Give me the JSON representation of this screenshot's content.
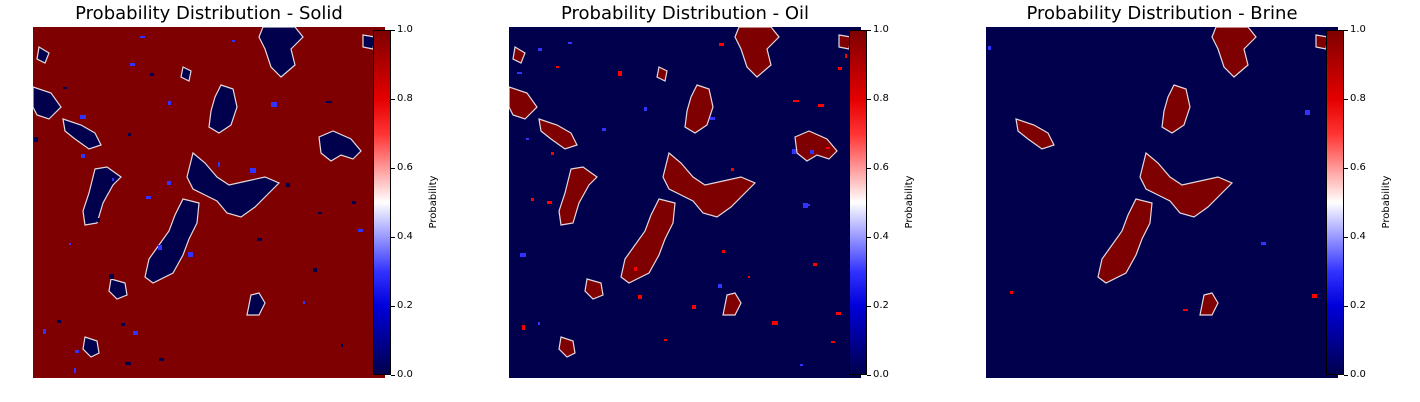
{
  "chart_data": [
    {
      "type": "heatmap",
      "title": "Probability Distribution - Solid",
      "colorbar": {
        "label": "Probability",
        "range": [
          0.0,
          1.0
        ],
        "ticks": [
          "0.0",
          "0.2",
          "0.4",
          "0.6",
          "0.8",
          "1.0"
        ],
        "colormap": "seismic"
      },
      "dominant_value": 1.0,
      "minority_value": 0.0,
      "axes_visible": false
    },
    {
      "type": "heatmap",
      "title": "Probability Distribution - Oil",
      "colorbar": {
        "label": "Probability",
        "range": [
          0.0,
          1.0
        ],
        "ticks": [
          "0.0",
          "0.2",
          "0.4",
          "0.6",
          "0.8",
          "1.0"
        ],
        "colormap": "seismic"
      },
      "dominant_value": 0.0,
      "minority_value": 1.0,
      "axes_visible": false
    },
    {
      "type": "heatmap",
      "title": "Probability Distribution - Brine",
      "colorbar": {
        "label": "Probability",
        "range": [
          0.0,
          1.0
        ],
        "ticks": [
          "0.0",
          "0.2",
          "0.4",
          "0.6",
          "0.8",
          "1.0"
        ],
        "colormap": "seismic"
      },
      "dominant_value": 0.0,
      "minority_value": 1.0,
      "axes_visible": false
    }
  ],
  "colors": {
    "low": "#00004c",
    "mid": "#ffffff",
    "high": "#7f0000",
    "blue": "#0000ff",
    "red": "#ff0000"
  }
}
